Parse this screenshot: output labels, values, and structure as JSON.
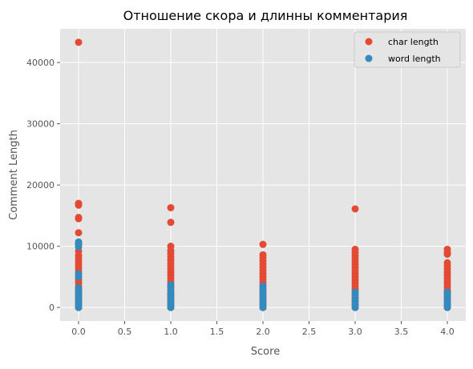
{
  "chart_data": {
    "type": "scatter",
    "title": "Отношение скора и длинны комментария",
    "xlabel": "Score",
    "ylabel": "Comment Length",
    "xlim": [
      -0.2,
      4.2
    ],
    "ylim": [
      -2200,
      45500
    ],
    "xticks": [
      "0.0",
      "0.5",
      "1.0",
      "1.5",
      "2.0",
      "2.5",
      "3.0",
      "3.5",
      "4.0"
    ],
    "yticks": [
      "0",
      "10000",
      "20000",
      "30000",
      "40000"
    ],
    "grid": true,
    "legend_position": "top-right",
    "series": [
      {
        "name": "char length",
        "color": "#E24A33",
        "points": [
          {
            "x": 0,
            "y": 43300
          },
          {
            "x": 0,
            "y": 17000
          },
          {
            "x": 0,
            "y": 16700
          },
          {
            "x": 0,
            "y": 14700
          },
          {
            "x": 0,
            "y": 14500
          },
          {
            "x": 0,
            "y": 12200
          },
          {
            "x": 0,
            "y": 10500
          },
          {
            "x": 0,
            "y": 9200
          },
          {
            "x": 0,
            "y": 8500
          },
          {
            "x": 0,
            "y": 8000
          },
          {
            "x": 0,
            "y": 7500
          },
          {
            "x": 0,
            "y": 7000
          },
          {
            "x": 0,
            "y": 6500
          },
          {
            "x": 0,
            "y": 6000
          },
          {
            "x": 0,
            "y": 5500
          },
          {
            "x": 0,
            "y": 5000
          },
          {
            "x": 0,
            "y": 4500
          },
          {
            "x": 0,
            "y": 4000
          },
          {
            "x": 0,
            "y": 3500
          },
          {
            "x": 0,
            "y": 3000
          },
          {
            "x": 0,
            "y": 2500
          },
          {
            "x": 0,
            "y": 2000
          },
          {
            "x": 0,
            "y": 1500
          },
          {
            "x": 0,
            "y": 1000
          },
          {
            "x": 0,
            "y": 500
          },
          {
            "x": 0,
            "y": 0
          },
          {
            "x": 1,
            "y": 16300
          },
          {
            "x": 1,
            "y": 13900
          },
          {
            "x": 1,
            "y": 10000
          },
          {
            "x": 1,
            "y": 9300
          },
          {
            "x": 1,
            "y": 8800
          },
          {
            "x": 1,
            "y": 8300
          },
          {
            "x": 1,
            "y": 7800
          },
          {
            "x": 1,
            "y": 7300
          },
          {
            "x": 1,
            "y": 6800
          },
          {
            "x": 1,
            "y": 6300
          },
          {
            "x": 1,
            "y": 5800
          },
          {
            "x": 1,
            "y": 5300
          },
          {
            "x": 1,
            "y": 4800
          },
          {
            "x": 1,
            "y": 4300
          },
          {
            "x": 1,
            "y": 3800
          },
          {
            "x": 1,
            "y": 3300
          },
          {
            "x": 1,
            "y": 2800
          },
          {
            "x": 1,
            "y": 2300
          },
          {
            "x": 1,
            "y": 1800
          },
          {
            "x": 1,
            "y": 1300
          },
          {
            "x": 1,
            "y": 800
          },
          {
            "x": 1,
            "y": 300
          },
          {
            "x": 1,
            "y": 0
          },
          {
            "x": 2,
            "y": 10300
          },
          {
            "x": 2,
            "y": 8600
          },
          {
            "x": 2,
            "y": 8100
          },
          {
            "x": 2,
            "y": 7600
          },
          {
            "x": 2,
            "y": 7100
          },
          {
            "x": 2,
            "y": 6600
          },
          {
            "x": 2,
            "y": 6100
          },
          {
            "x": 2,
            "y": 5600
          },
          {
            "x": 2,
            "y": 5100
          },
          {
            "x": 2,
            "y": 4600
          },
          {
            "x": 2,
            "y": 4100
          },
          {
            "x": 2,
            "y": 3600
          },
          {
            "x": 2,
            "y": 3100
          },
          {
            "x": 2,
            "y": 2600
          },
          {
            "x": 2,
            "y": 2100
          },
          {
            "x": 2,
            "y": 1600
          },
          {
            "x": 2,
            "y": 1100
          },
          {
            "x": 2,
            "y": 600
          },
          {
            "x": 2,
            "y": 100
          },
          {
            "x": 2,
            "y": 0
          },
          {
            "x": 3,
            "y": 16100
          },
          {
            "x": 3,
            "y": 9500
          },
          {
            "x": 3,
            "y": 9000
          },
          {
            "x": 3,
            "y": 8500
          },
          {
            "x": 3,
            "y": 8000
          },
          {
            "x": 3,
            "y": 7500
          },
          {
            "x": 3,
            "y": 7000
          },
          {
            "x": 3,
            "y": 6500
          },
          {
            "x": 3,
            "y": 6000
          },
          {
            "x": 3,
            "y": 5500
          },
          {
            "x": 3,
            "y": 5000
          },
          {
            "x": 3,
            "y": 4500
          },
          {
            "x": 3,
            "y": 4000
          },
          {
            "x": 3,
            "y": 3500
          },
          {
            "x": 3,
            "y": 3000
          },
          {
            "x": 3,
            "y": 2500
          },
          {
            "x": 3,
            "y": 2000
          },
          {
            "x": 3,
            "y": 1500
          },
          {
            "x": 3,
            "y": 1000
          },
          {
            "x": 3,
            "y": 500
          },
          {
            "x": 3,
            "y": 0
          },
          {
            "x": 4,
            "y": 9500
          },
          {
            "x": 4,
            "y": 9000
          },
          {
            "x": 4,
            "y": 8700
          },
          {
            "x": 4,
            "y": 7300
          },
          {
            "x": 4,
            "y": 6800
          },
          {
            "x": 4,
            "y": 6300
          },
          {
            "x": 4,
            "y": 5800
          },
          {
            "x": 4,
            "y": 5300
          },
          {
            "x": 4,
            "y": 4800
          },
          {
            "x": 4,
            "y": 4300
          },
          {
            "x": 4,
            "y": 3800
          },
          {
            "x": 4,
            "y": 3300
          },
          {
            "x": 4,
            "y": 2800
          },
          {
            "x": 4,
            "y": 2300
          },
          {
            "x": 4,
            "y": 1800
          },
          {
            "x": 4,
            "y": 1300
          },
          {
            "x": 4,
            "y": 800
          },
          {
            "x": 4,
            "y": 300
          },
          {
            "x": 4,
            "y": 0
          }
        ]
      },
      {
        "name": "word length",
        "color": "#348ABD",
        "points": [
          {
            "x": 0,
            "y": 10700
          },
          {
            "x": 0,
            "y": 10300
          },
          {
            "x": 0,
            "y": 9900
          },
          {
            "x": 0,
            "y": 5500
          },
          {
            "x": 0,
            "y": 5000
          },
          {
            "x": 0,
            "y": 3200
          },
          {
            "x": 0,
            "y": 2800
          },
          {
            "x": 0,
            "y": 2400
          },
          {
            "x": 0,
            "y": 2000
          },
          {
            "x": 0,
            "y": 1600
          },
          {
            "x": 0,
            "y": 1200
          },
          {
            "x": 0,
            "y": 800
          },
          {
            "x": 0,
            "y": 400
          },
          {
            "x": 0,
            "y": 0
          },
          {
            "x": 1,
            "y": 3700
          },
          {
            "x": 1,
            "y": 3300
          },
          {
            "x": 1,
            "y": 2700
          },
          {
            "x": 1,
            "y": 2100
          },
          {
            "x": 1,
            "y": 1600
          },
          {
            "x": 1,
            "y": 1200
          },
          {
            "x": 1,
            "y": 800
          },
          {
            "x": 1,
            "y": 400
          },
          {
            "x": 1,
            "y": 0
          },
          {
            "x": 2,
            "y": 3500
          },
          {
            "x": 2,
            "y": 3000
          },
          {
            "x": 2,
            "y": 2500
          },
          {
            "x": 2,
            "y": 2000
          },
          {
            "x": 2,
            "y": 1500
          },
          {
            "x": 2,
            "y": 1000
          },
          {
            "x": 2,
            "y": 500
          },
          {
            "x": 2,
            "y": 0
          },
          {
            "x": 3,
            "y": 2500
          },
          {
            "x": 3,
            "y": 2000
          },
          {
            "x": 3,
            "y": 1500
          },
          {
            "x": 3,
            "y": 1000
          },
          {
            "x": 3,
            "y": 500
          },
          {
            "x": 3,
            "y": 0
          },
          {
            "x": 4,
            "y": 2500
          },
          {
            "x": 4,
            "y": 2000
          },
          {
            "x": 4,
            "y": 1500
          },
          {
            "x": 4,
            "y": 1000
          },
          {
            "x": 4,
            "y": 500
          },
          {
            "x": 4,
            "y": 0
          }
        ]
      }
    ]
  }
}
